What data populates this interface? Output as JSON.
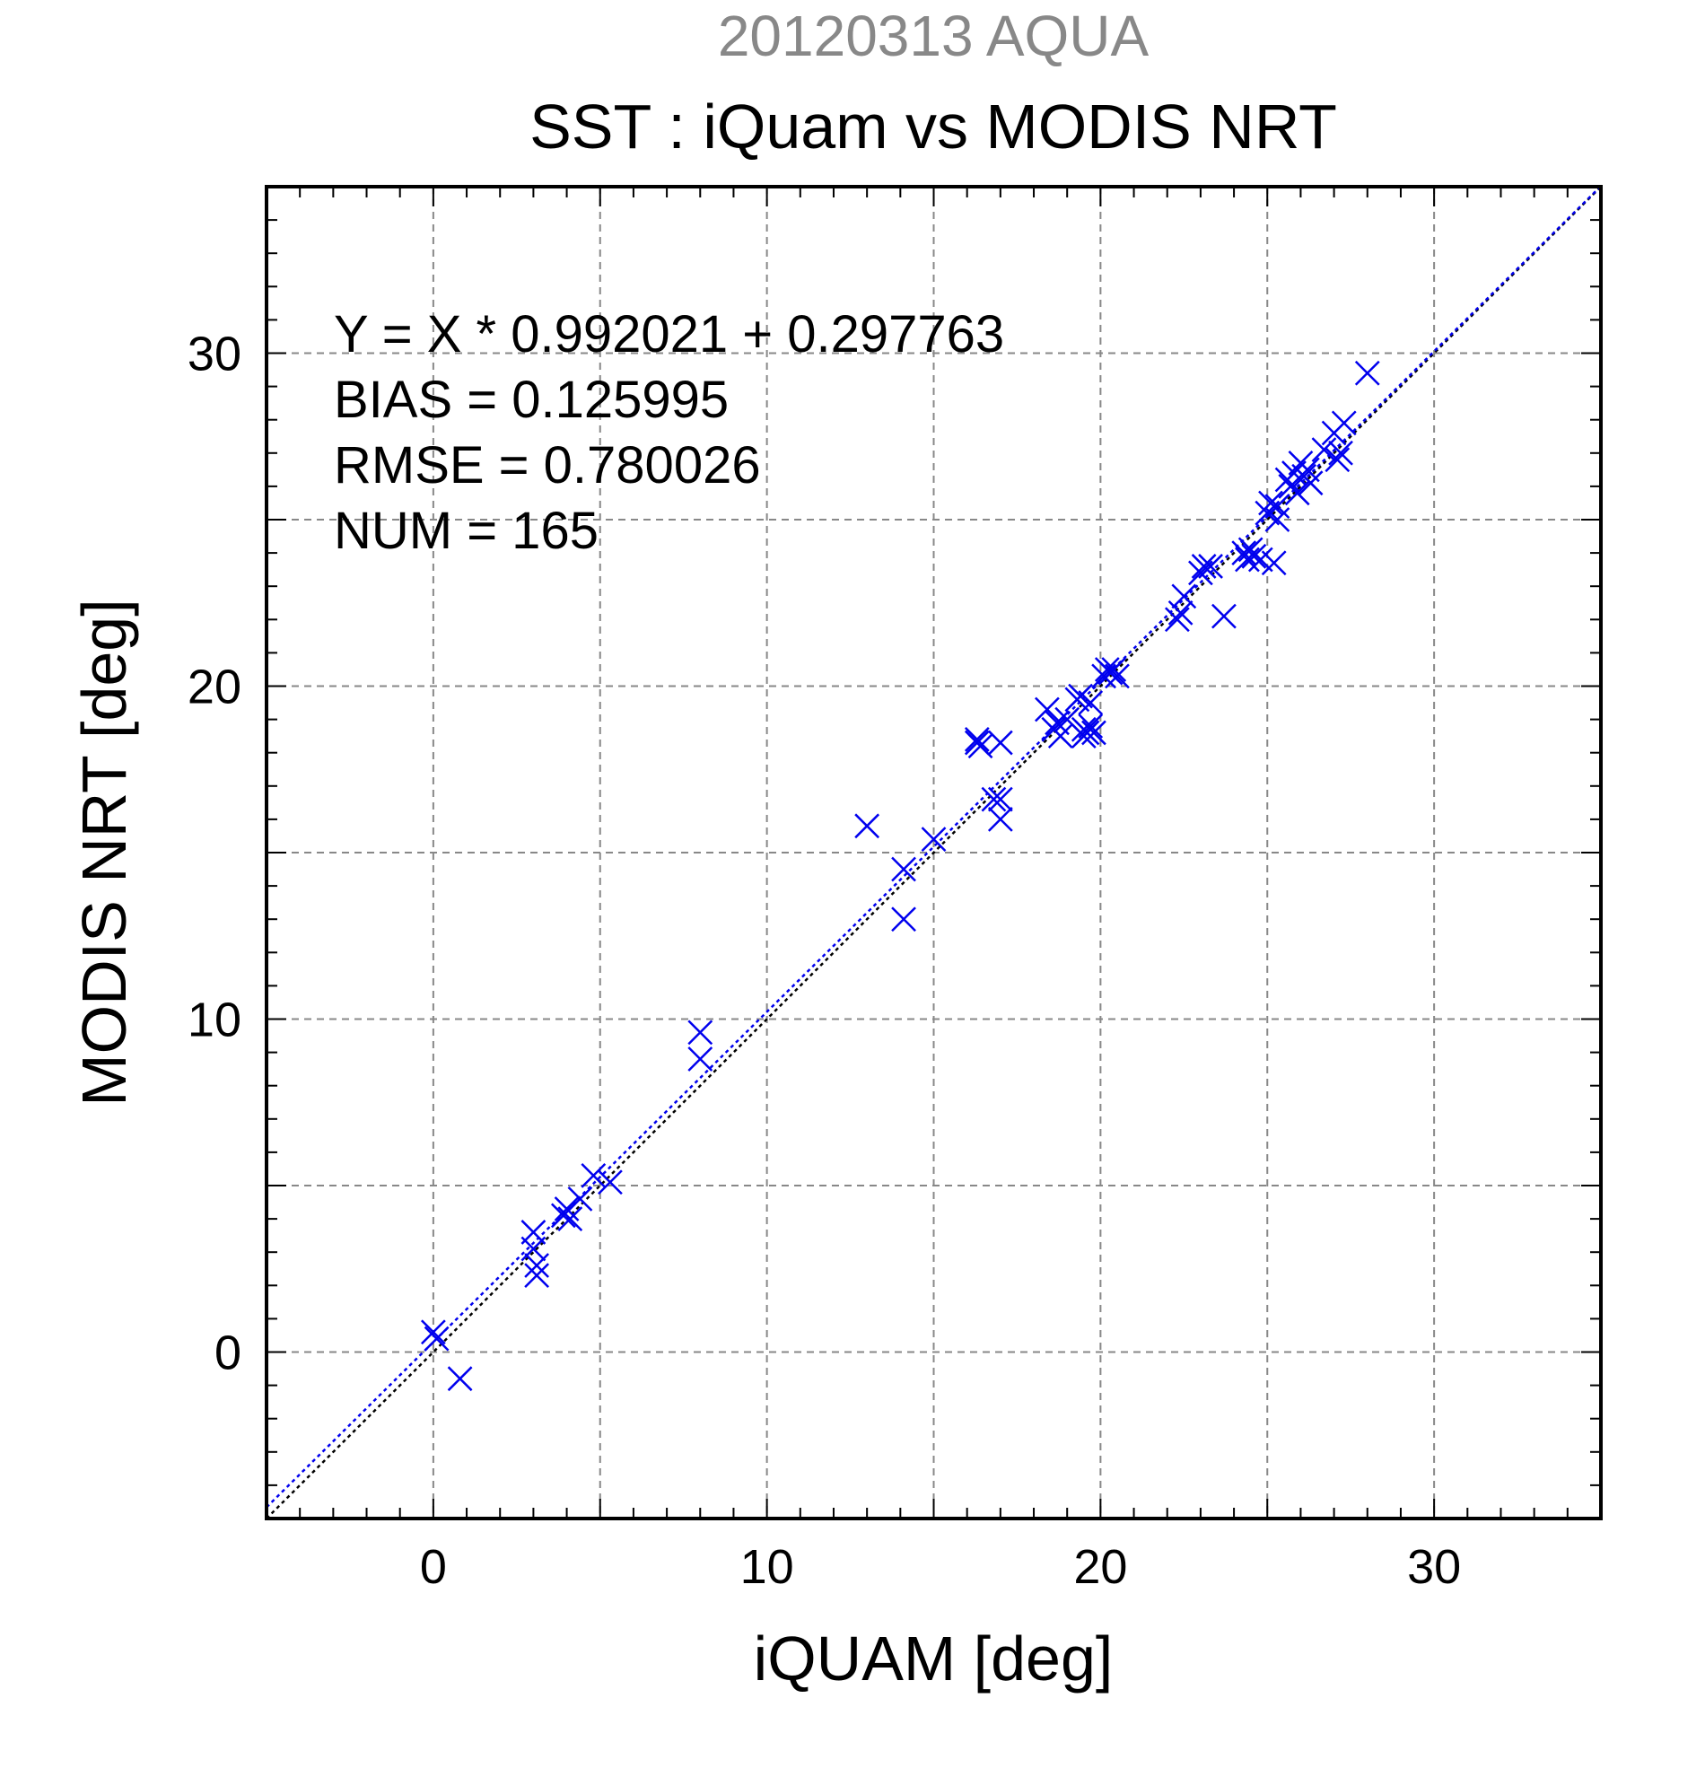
{
  "chart_data": {
    "type": "scatter",
    "supertitle": "20120313 AQUA",
    "title": "SST : iQuam vs MODIS NRT",
    "xlabel": "iQUAM [deg]",
    "ylabel": "MODIS NRT [deg]",
    "xlim": [
      -5,
      35
    ],
    "ylim": [
      -5,
      35
    ],
    "x_ticks": [
      0,
      10,
      20,
      30
    ],
    "y_ticks": [
      0,
      10,
      20,
      30
    ],
    "grid": true,
    "annotations": [
      "Y = X * 0.992021 + 0.297763",
      "BIAS = 0.125995",
      "RMSE = 0.780026",
      "NUM = 165"
    ],
    "fit": {
      "slope": 0.992021,
      "intercept": 0.297763
    },
    "colors": {
      "points": "#0000ee",
      "fit_line": "#0000ee",
      "identity_line": "#000000",
      "supertitle": "#888888",
      "grid": "#888888"
    },
    "series": [
      {
        "marker": "x",
        "x": [
          0.0,
          0.1,
          0.8,
          3.0,
          3.0,
          3.1,
          3.1,
          3.9,
          4.0,
          4.1,
          4.4,
          4.8,
          5.3,
          8.0,
          8.0,
          13.0,
          14.1,
          14.1,
          15.0,
          16.3,
          16.3,
          16.4,
          16.8,
          17.0,
          17.0,
          17.0,
          18.4,
          18.6,
          18.7,
          18.8,
          19.0,
          19.3,
          19.4,
          19.5,
          19.5,
          19.6,
          19.7,
          19.7,
          19.8,
          20.1,
          20.2,
          20.3,
          20.4,
          20.5,
          22.3,
          22.4,
          22.5,
          23.0,
          23.1,
          23.3,
          23.7,
          24.3,
          24.4,
          24.5,
          24.6,
          24.8,
          25.0,
          25.1,
          25.2,
          25.3,
          25.3,
          25.6,
          25.7,
          25.8,
          25.9,
          26.0,
          26.1,
          26.2,
          26.3,
          26.7,
          27.0,
          27.1,
          27.2,
          27.3,
          28.0
        ],
        "y": [
          0.6,
          0.4,
          -0.8,
          3.6,
          3.1,
          2.6,
          2.3,
          4.1,
          4.3,
          4.0,
          4.6,
          5.3,
          5.1,
          9.6,
          8.8,
          15.8,
          14.5,
          13.0,
          15.4,
          18.3,
          18.4,
          18.2,
          16.6,
          16.0,
          16.6,
          18.3,
          19.3,
          18.7,
          18.9,
          18.5,
          19.0,
          19.6,
          19.7,
          18.5,
          18.7,
          18.6,
          18.8,
          19.5,
          18.6,
          20.3,
          20.5,
          20.4,
          20.5,
          20.3,
          22.0,
          22.2,
          22.7,
          23.4,
          23.6,
          23.6,
          22.1,
          24.0,
          23.8,
          24.1,
          23.9,
          23.8,
          25.2,
          25.5,
          23.7,
          25.0,
          25.4,
          26.2,
          26.0,
          26.4,
          25.8,
          26.7,
          26.3,
          26.5,
          26.1,
          27.1,
          27.6,
          26.8,
          27.0,
          27.9,
          29.4
        ]
      }
    ]
  }
}
